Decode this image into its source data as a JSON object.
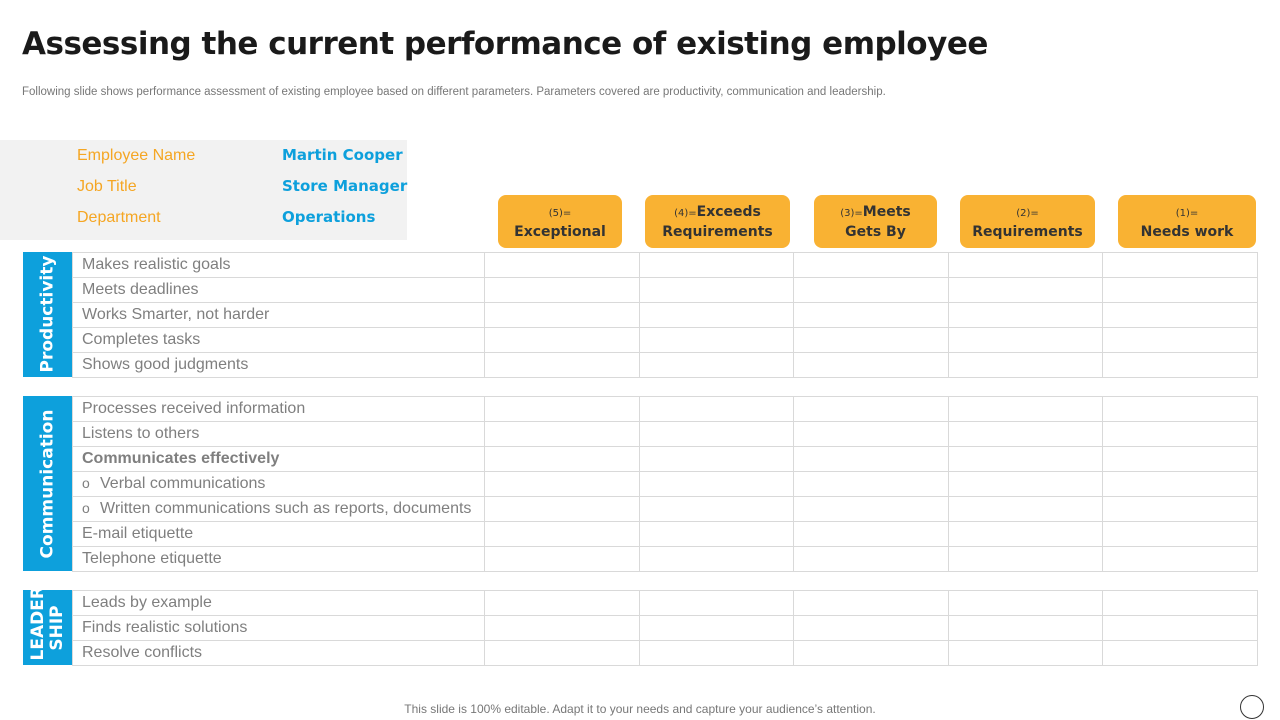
{
  "header": {
    "title": "Assessing the current performance of existing employee",
    "subtitle": "Following slide shows performance assessment of existing employee based on different parameters. Parameters covered are productivity,  communication and leadership."
  },
  "employee_info": [
    {
      "label": "Employee Name",
      "value": "Martin Cooper"
    },
    {
      "label": "Job Title",
      "value": "Store Manager"
    },
    {
      "label": "Department",
      "value": "Operations"
    }
  ],
  "ratings": [
    {
      "score": "(5)=",
      "label": "Exceptional"
    },
    {
      "score": "(4)=",
      "label_top": "Exceeds",
      "label": "Requirements"
    },
    {
      "score": "(3)=",
      "label_top": "Meets",
      "label": "Gets By"
    },
    {
      "score": "(2)=",
      "label": "Requirements"
    },
    {
      "score": "(1)=",
      "label": "Needs work"
    }
  ],
  "sections": [
    {
      "name": "Productivity",
      "rows": [
        {
          "text": "Makes realistic goals"
        },
        {
          "text": "Meets deadlines"
        },
        {
          "text": "Works Smarter, not harder"
        },
        {
          "text": "Completes tasks"
        },
        {
          "text": "Shows good judgments"
        }
      ]
    },
    {
      "name": "Communication",
      "rows": [
        {
          "text": "Processes received information"
        },
        {
          "text": "Listens to others"
        },
        {
          "text": "Communicates effectively",
          "bold": true
        },
        {
          "text": "Verbal communications",
          "bullet": true
        },
        {
          "text": "Written communications such as reports, documents",
          "bullet": true
        },
        {
          "text": "E-mail etiquette"
        },
        {
          "text": "Telephone etiquette"
        }
      ]
    },
    {
      "name": "LEADER SHIP",
      "rows": [
        {
          "text": "Leads by example"
        },
        {
          "text": "Finds realistic solutions"
        },
        {
          "text": "Resolve conflicts"
        }
      ]
    }
  ],
  "footer": "This slide is 100% editable. Adapt it to your needs and capture your audience’s attention."
}
